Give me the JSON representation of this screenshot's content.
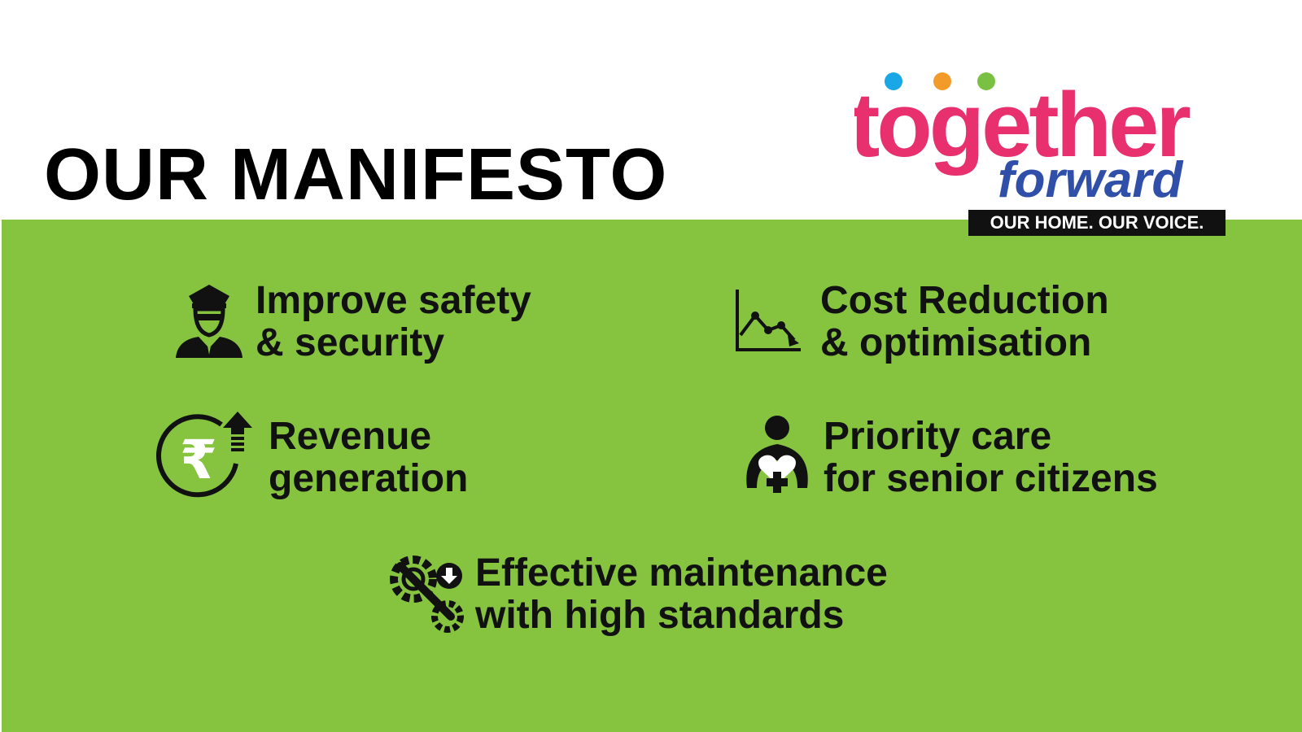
{
  "header": {
    "title": "OUR MANIFESTO"
  },
  "logo": {
    "word_main": "together",
    "word_sub": "forward",
    "tagline": "OUR HOME. OUR VOICE.",
    "colors": {
      "pink": "#e8306f",
      "blue": "#2f4fa8",
      "dot_blue": "#1aa7e8",
      "dot_orange": "#f29b2b",
      "dot_green": "#7ac143"
    }
  },
  "panel": {
    "background": "#86c440"
  },
  "items": [
    {
      "icon": "security-guard-icon",
      "line1": "Improve safety",
      "line2": "& security"
    },
    {
      "icon": "decreasing-chart-icon",
      "line1": "Cost Reduction",
      "line2": "& optimisation"
    },
    {
      "icon": "rupee-growth-icon",
      "line1": "Revenue",
      "line2": "generation"
    },
    {
      "icon": "senior-care-icon",
      "line1": "Priority care",
      "line2": "for senior citizens"
    },
    {
      "icon": "maintenance-tools-icon",
      "line1": "Effective maintenance",
      "line2": "with high standards"
    }
  ]
}
